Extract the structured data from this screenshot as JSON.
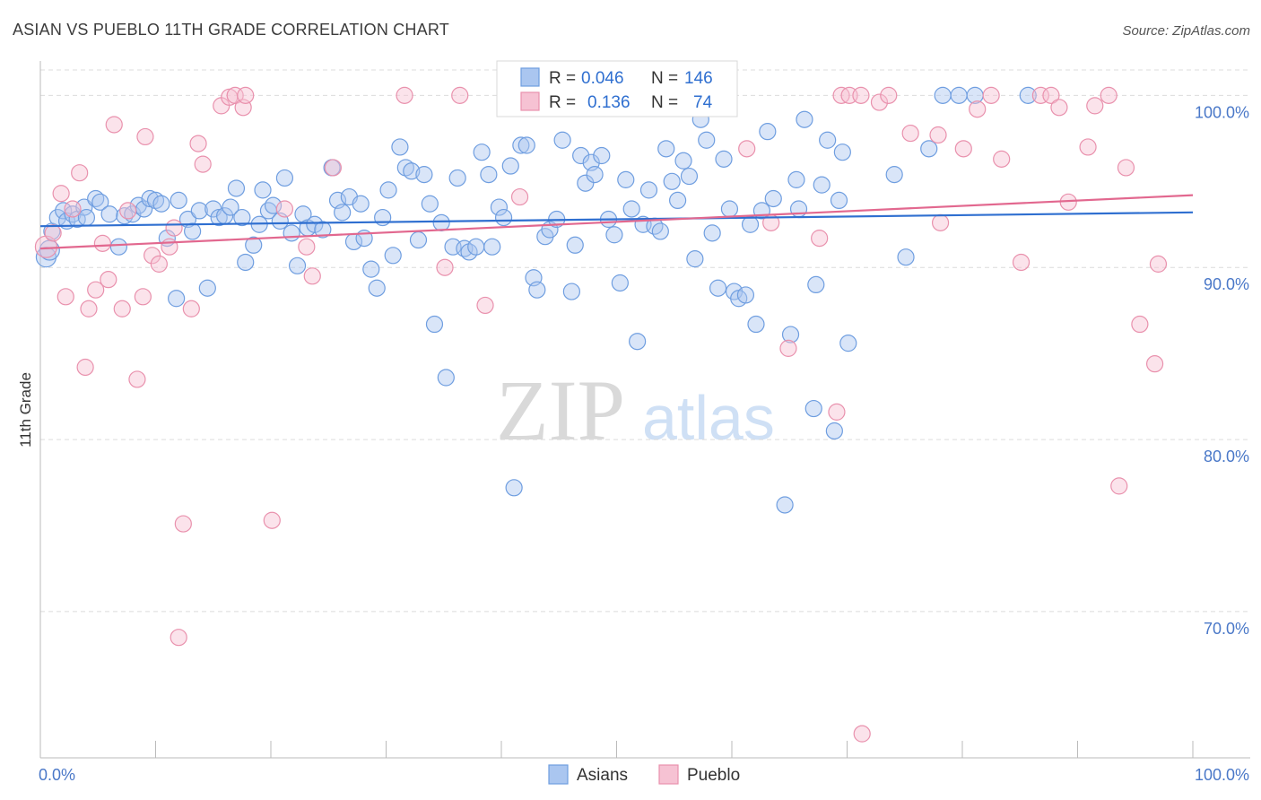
{
  "chart_data": {
    "type": "scatter",
    "title": "ASIAN VS PUEBLO 11TH GRADE CORRELATION CHART",
    "source": "Source: ZipAtlas.com",
    "ylabel": "11th Grade",
    "xlabel": "",
    "xlim": [
      0,
      100
    ],
    "ylim": [
      61.5,
      102
    ],
    "x_tick_labels": [
      "0.0%",
      "100.0%"
    ],
    "y_ticks": [
      {
        "value": 100,
        "label": "100.0%"
      },
      {
        "value": 90,
        "label": "90.0%"
      },
      {
        "value": 80,
        "label": "80.0%"
      },
      {
        "value": 70,
        "label": "70.0%"
      }
    ],
    "grid": "horizontal dashed",
    "legend_position": "top-center",
    "watermark": {
      "zip": "ZIP",
      "atlas": "atlas"
    },
    "stats": [
      {
        "r_label": "R =",
        "r_value": "0.046",
        "n_label": "N =",
        "n_value": "146"
      },
      {
        "r_label": "R =",
        "r_value": "0.136",
        "n_label": "N =",
        "n_value": "74"
      }
    ],
    "series": [
      {
        "name": "Asians",
        "color": "#6f9ee0",
        "fill": "#aac6f0",
        "trend": {
          "x0": 0,
          "y0": 92.4,
          "x1": 100,
          "y1": 93.2,
          "color": "#2f6fd0"
        },
        "points": [
          [
            0.5,
            90.6
          ],
          [
            0.8,
            91.0
          ],
          [
            1,
            92.1
          ],
          [
            1.5,
            92.9
          ],
          [
            2,
            93.3
          ],
          [
            2.3,
            92.7
          ],
          [
            2.8,
            93.1
          ],
          [
            3.2,
            92.8
          ],
          [
            3.8,
            93.5
          ],
          [
            4,
            92.9
          ],
          [
            4.8,
            94.0
          ],
          [
            5.2,
            93.8
          ],
          [
            6,
            93.1
          ],
          [
            6.8,
            91.2
          ],
          [
            7.3,
            93.0
          ],
          [
            8,
            93.1
          ],
          [
            8.5,
            93.6
          ],
          [
            9,
            93.4
          ],
          [
            9.5,
            94.0
          ],
          [
            10,
            93.9
          ],
          [
            10.5,
            93.7
          ],
          [
            11,
            91.7
          ],
          [
            11.8,
            88.2
          ],
          [
            12,
            93.9
          ],
          [
            12.8,
            92.8
          ],
          [
            13.2,
            92.1
          ],
          [
            13.8,
            93.3
          ],
          [
            14.5,
            88.8
          ],
          [
            15,
            93.4
          ],
          [
            15.5,
            92.9
          ],
          [
            16,
            93.0
          ],
          [
            16.5,
            93.5
          ],
          [
            17,
            94.6
          ],
          [
            17.5,
            92.9
          ],
          [
            17.8,
            90.3
          ],
          [
            18.5,
            91.3
          ],
          [
            19,
            92.5
          ],
          [
            19.3,
            94.5
          ],
          [
            19.8,
            93.3
          ],
          [
            20.2,
            93.6
          ],
          [
            20.8,
            92.7
          ],
          [
            21.2,
            95.2
          ],
          [
            21.8,
            92.0
          ],
          [
            22.3,
            90.1
          ],
          [
            22.8,
            93.1
          ],
          [
            23.2,
            92.3
          ],
          [
            23.8,
            92.5
          ],
          [
            24.5,
            92.2
          ],
          [
            25.3,
            95.8
          ],
          [
            25.8,
            93.9
          ],
          [
            26.2,
            93.2
          ],
          [
            26.8,
            94.1
          ],
          [
            27.2,
            91.5
          ],
          [
            27.8,
            93.7
          ],
          [
            28.1,
            91.7
          ],
          [
            28.7,
            89.9
          ],
          [
            29.2,
            88.8
          ],
          [
            29.7,
            92.9
          ],
          [
            30.2,
            94.5
          ],
          [
            30.6,
            90.7
          ],
          [
            31.2,
            97.0
          ],
          [
            31.7,
            95.8
          ],
          [
            32.2,
            95.6
          ],
          [
            32.8,
            91.6
          ],
          [
            33.3,
            95.4
          ],
          [
            33.8,
            93.7
          ],
          [
            34.2,
            86.7
          ],
          [
            34.8,
            92.6
          ],
          [
            35.2,
            83.6
          ],
          [
            35.8,
            91.2
          ],
          [
            36.2,
            95.2
          ],
          [
            36.8,
            91.1
          ],
          [
            37.2,
            90.9
          ],
          [
            37.8,
            91.2
          ],
          [
            38.3,
            96.7
          ],
          [
            38.9,
            95.4
          ],
          [
            39.2,
            91.2
          ],
          [
            39.8,
            93.5
          ],
          [
            40.2,
            92.9
          ],
          [
            40.8,
            95.9
          ],
          [
            41.1,
            77.2
          ],
          [
            41.7,
            97.1
          ],
          [
            42.2,
            97.1
          ],
          [
            42.8,
            89.4
          ],
          [
            43.1,
            88.7
          ],
          [
            43.8,
            91.8
          ],
          [
            44.2,
            92.2
          ],
          [
            44.8,
            92.8
          ],
          [
            45.3,
            97.4
          ],
          [
            46.1,
            88.6
          ],
          [
            46.4,
            91.3
          ],
          [
            46.9,
            96.5
          ],
          [
            47.3,
            94.9
          ],
          [
            47.8,
            96.1
          ],
          [
            48.1,
            95.4
          ],
          [
            48.7,
            96.5
          ],
          [
            49.3,
            92.8
          ],
          [
            49.8,
            91.9
          ],
          [
            50.3,
            89.1
          ],
          [
            50.8,
            95.1
          ],
          [
            51.3,
            93.4
          ],
          [
            51.8,
            85.7
          ],
          [
            52.3,
            92.5
          ],
          [
            52.8,
            94.5
          ],
          [
            53.3,
            92.4
          ],
          [
            53.8,
            92.1
          ],
          [
            54.3,
            96.9
          ],
          [
            54.8,
            95.0
          ],
          [
            55.3,
            93.9
          ],
          [
            55.8,
            96.2
          ],
          [
            56.3,
            95.3
          ],
          [
            56.8,
            90.5
          ],
          [
            57.3,
            98.6
          ],
          [
            57.8,
            97.4
          ],
          [
            58.3,
            92.0
          ],
          [
            58.8,
            88.8
          ],
          [
            59.3,
            96.3
          ],
          [
            59.8,
            93.4
          ],
          [
            60.2,
            88.6
          ],
          [
            60.6,
            88.2
          ],
          [
            61.2,
            88.4
          ],
          [
            61.6,
            92.5
          ],
          [
            62.1,
            86.7
          ],
          [
            62.6,
            93.3
          ],
          [
            63.1,
            97.9
          ],
          [
            63.6,
            94.0
          ],
          [
            64.6,
            76.2
          ],
          [
            65.1,
            86.1
          ],
          [
            65.6,
            95.1
          ],
          [
            65.8,
            93.4
          ],
          [
            66.3,
            98.6
          ],
          [
            67.1,
            81.8
          ],
          [
            67.3,
            89.0
          ],
          [
            67.8,
            94.8
          ],
          [
            68.3,
            97.4
          ],
          [
            68.9,
            80.5
          ],
          [
            69.3,
            93.9
          ],
          [
            69.6,
            96.7
          ],
          [
            70.1,
            85.6
          ],
          [
            74.1,
            95.4
          ],
          [
            75.1,
            90.6
          ],
          [
            77.1,
            96.9
          ],
          [
            78.3,
            100.0
          ],
          [
            79.7,
            100.0
          ],
          [
            81.1,
            100.0
          ],
          [
            85.7,
            100.0
          ]
        ]
      },
      {
        "name": "Pueblo",
        "color": "#e991ad",
        "fill": "#f6c2d3",
        "trend": {
          "x0": 0,
          "y0": 91.1,
          "x1": 100,
          "y1": 94.2,
          "color": "#e2688f"
        },
        "points": [
          [
            0.5,
            91.2
          ],
          [
            1.1,
            92.0
          ],
          [
            1.8,
            94.3
          ],
          [
            2.2,
            88.3
          ],
          [
            2.8,
            93.4
          ],
          [
            3.4,
            95.5
          ],
          [
            3.9,
            84.2
          ],
          [
            4.2,
            87.6
          ],
          [
            4.8,
            88.7
          ],
          [
            5.4,
            91.4
          ],
          [
            5.9,
            89.3
          ],
          [
            6.4,
            98.3
          ],
          [
            7.1,
            87.6
          ],
          [
            7.6,
            93.3
          ],
          [
            8.4,
            83.5
          ],
          [
            8.9,
            88.3
          ],
          [
            9.1,
            97.6
          ],
          [
            9.7,
            90.7
          ],
          [
            10.3,
            90.2
          ],
          [
            11.2,
            91.2
          ],
          [
            11.6,
            92.3
          ],
          [
            12.0,
            68.5
          ],
          [
            12.4,
            75.1
          ],
          [
            13.1,
            87.6
          ],
          [
            13.7,
            97.2
          ],
          [
            14.1,
            96.0
          ],
          [
            15.7,
            99.4
          ],
          [
            16.4,
            99.9
          ],
          [
            16.9,
            100.0
          ],
          [
            17.6,
            99.3
          ],
          [
            17.8,
            100.0
          ],
          [
            20.1,
            75.3
          ],
          [
            21.2,
            93.4
          ],
          [
            23.1,
            91.2
          ],
          [
            23.6,
            89.5
          ],
          [
            25.4,
            95.8
          ],
          [
            31.6,
            100.0
          ],
          [
            35.1,
            90.0
          ],
          [
            36.4,
            100.0
          ],
          [
            38.6,
            87.8
          ],
          [
            41.6,
            94.1
          ],
          [
            47.1,
            100.0
          ],
          [
            48.1,
            100.0
          ],
          [
            61.3,
            96.9
          ],
          [
            63.4,
            92.6
          ],
          [
            64.9,
            85.3
          ],
          [
            67.6,
            91.7
          ],
          [
            69.1,
            81.6
          ],
          [
            69.5,
            100.0
          ],
          [
            70.2,
            100.0
          ],
          [
            71.2,
            100.0
          ],
          [
            72.8,
            99.6
          ],
          [
            73.6,
            100.0
          ],
          [
            75.5,
            97.8
          ],
          [
            77.9,
            97.7
          ],
          [
            78.1,
            92.6
          ],
          [
            80.1,
            96.9
          ],
          [
            81.3,
            99.2
          ],
          [
            82.5,
            100.0
          ],
          [
            83.4,
            96.3
          ],
          [
            85.1,
            90.3
          ],
          [
            86.8,
            100.0
          ],
          [
            87.7,
            100.0
          ],
          [
            88.4,
            99.3
          ],
          [
            89.2,
            93.8
          ],
          [
            90.9,
            97.0
          ],
          [
            91.5,
            99.4
          ],
          [
            92.7,
            100.0
          ],
          [
            93.6,
            77.3
          ],
          [
            94.2,
            95.8
          ],
          [
            95.4,
            86.7
          ],
          [
            96.7,
            84.4
          ],
          [
            97.0,
            90.2
          ],
          [
            71.3,
            62.9
          ]
        ]
      }
    ]
  }
}
